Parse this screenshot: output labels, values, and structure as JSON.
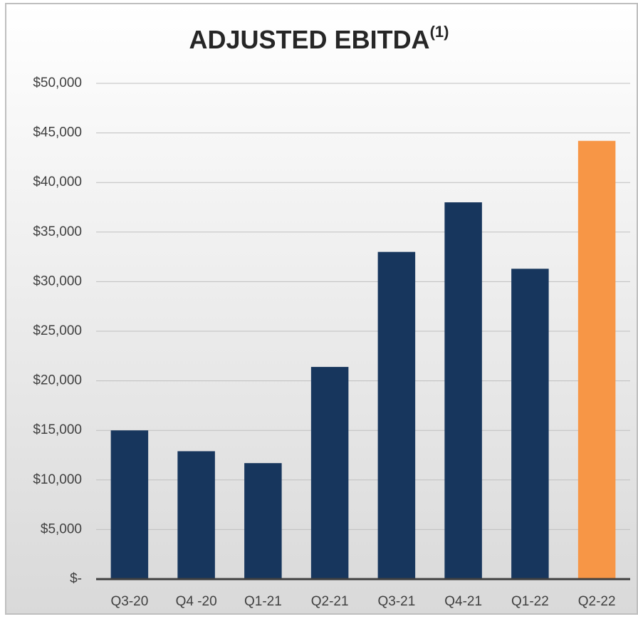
{
  "chart_data": {
    "type": "bar",
    "title": "ADJUSTED EBITDA",
    "title_superscript": "(1)",
    "categories": [
      "Q3-20",
      "Q4 -20",
      "Q1-21",
      "Q2-21",
      "Q3-21",
      "Q4-21",
      "Q1-22",
      "Q2-22"
    ],
    "values": [
      15000,
      12900,
      11700,
      21400,
      33000,
      38000,
      31300,
      44200
    ],
    "colors": [
      "#17365d",
      "#17365d",
      "#17365d",
      "#17365d",
      "#17365d",
      "#17365d",
      "#17365d",
      "#f79646"
    ],
    "ylim": [
      0,
      50000
    ],
    "yticks": [
      {
        "value": 0,
        "label": "$-"
      },
      {
        "value": 5000,
        "label": "$5,000"
      },
      {
        "value": 10000,
        "label": "$10,000"
      },
      {
        "value": 15000,
        "label": "$15,000"
      },
      {
        "value": 20000,
        "label": "$20,000"
      },
      {
        "value": 25000,
        "label": "$25,000"
      },
      {
        "value": 30000,
        "label": "$30,000"
      },
      {
        "value": 35000,
        "label": "$35,000"
      },
      {
        "value": 40000,
        "label": "$40,000"
      },
      {
        "value": 45000,
        "label": "$45,000"
      },
      {
        "value": 50000,
        "label": "$50,000"
      }
    ],
    "grid": true
  }
}
